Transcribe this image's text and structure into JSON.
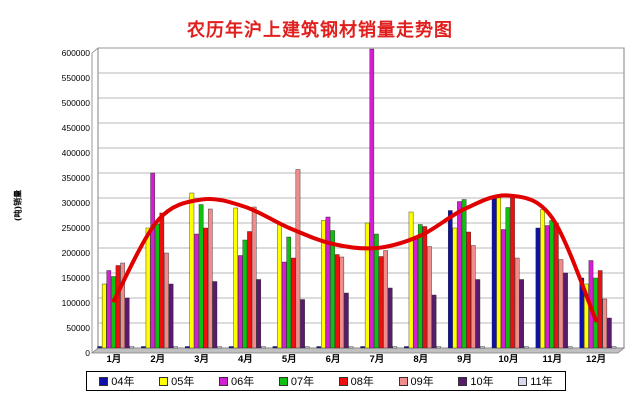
{
  "chart_data": {
    "type": "bar",
    "title": "农历年沪上建筑钢材销量走势图",
    "ylabel": "(吨)销量",
    "xlabel": "",
    "ylim": [
      0,
      600000
    ],
    "yticks": [
      "0",
      "50000",
      "100000",
      "150000",
      "200000",
      "250000",
      "300000",
      "350000",
      "400000",
      "450000",
      "500000",
      "550000",
      "600000"
    ],
    "categories": [
      "1月",
      "2月",
      "3月",
      "4月",
      "5月",
      "6月",
      "7月",
      "8月",
      "9月",
      "10月",
      "11月",
      "12月"
    ],
    "grid": true,
    "legend_position": "bottom",
    "series": [
      {
        "name": "04年",
        "color": "#1010a8",
        "values": [
          0,
          0,
          0,
          0,
          0,
          0,
          0,
          0,
          275000,
          300000,
          240000,
          140000
        ]
      },
      {
        "name": "05年",
        "color": "#ffff00",
        "values": [
          128000,
          240000,
          310000,
          280000,
          250000,
          255000,
          250000,
          272000,
          240000,
          300000,
          277000,
          128000
        ]
      },
      {
        "name": "06年",
        "color": "#d41ed4",
        "values": [
          155000,
          350000,
          228000,
          185000,
          172000,
          262000,
          598000,
          222000,
          293000,
          237000,
          245000,
          175000
        ]
      },
      {
        "name": "07年",
        "color": "#10c010",
        "values": [
          143000,
          248000,
          287000,
          216000,
          222000,
          235000,
          228000,
          247000,
          297000,
          281000,
          255000,
          140000
        ]
      },
      {
        "name": "08年",
        "color": "#ee1010",
        "values": [
          165000,
          270000,
          240000,
          233000,
          180000,
          187000,
          183000,
          243000,
          232000,
          300000,
          250000,
          155000
        ]
      },
      {
        "name": "09年",
        "color": "#f08c8c",
        "values": [
          170000,
          190000,
          278000,
          282000,
          357000,
          182000,
          195000,
          203000,
          205000,
          180000,
          177000,
          98000
        ]
      },
      {
        "name": "10年",
        "color": "#5a1a6e",
        "values": [
          100000,
          128000,
          133000,
          137000,
          97000,
          110000,
          120000,
          106000,
          137000,
          137000,
          150000,
          60000
        ]
      },
      {
        "name": "11年",
        "color": "#d8d8ec",
        "values": [
          0,
          0,
          0,
          0,
          0,
          0,
          0,
          0,
          0,
          0,
          0,
          0
        ]
      }
    ],
    "trend_line": {
      "color": "#e00000",
      "values": [
        95000,
        255000,
        297000,
        282000,
        240000,
        208000,
        200000,
        225000,
        278000,
        305000,
        260000,
        55000
      ]
    }
  }
}
